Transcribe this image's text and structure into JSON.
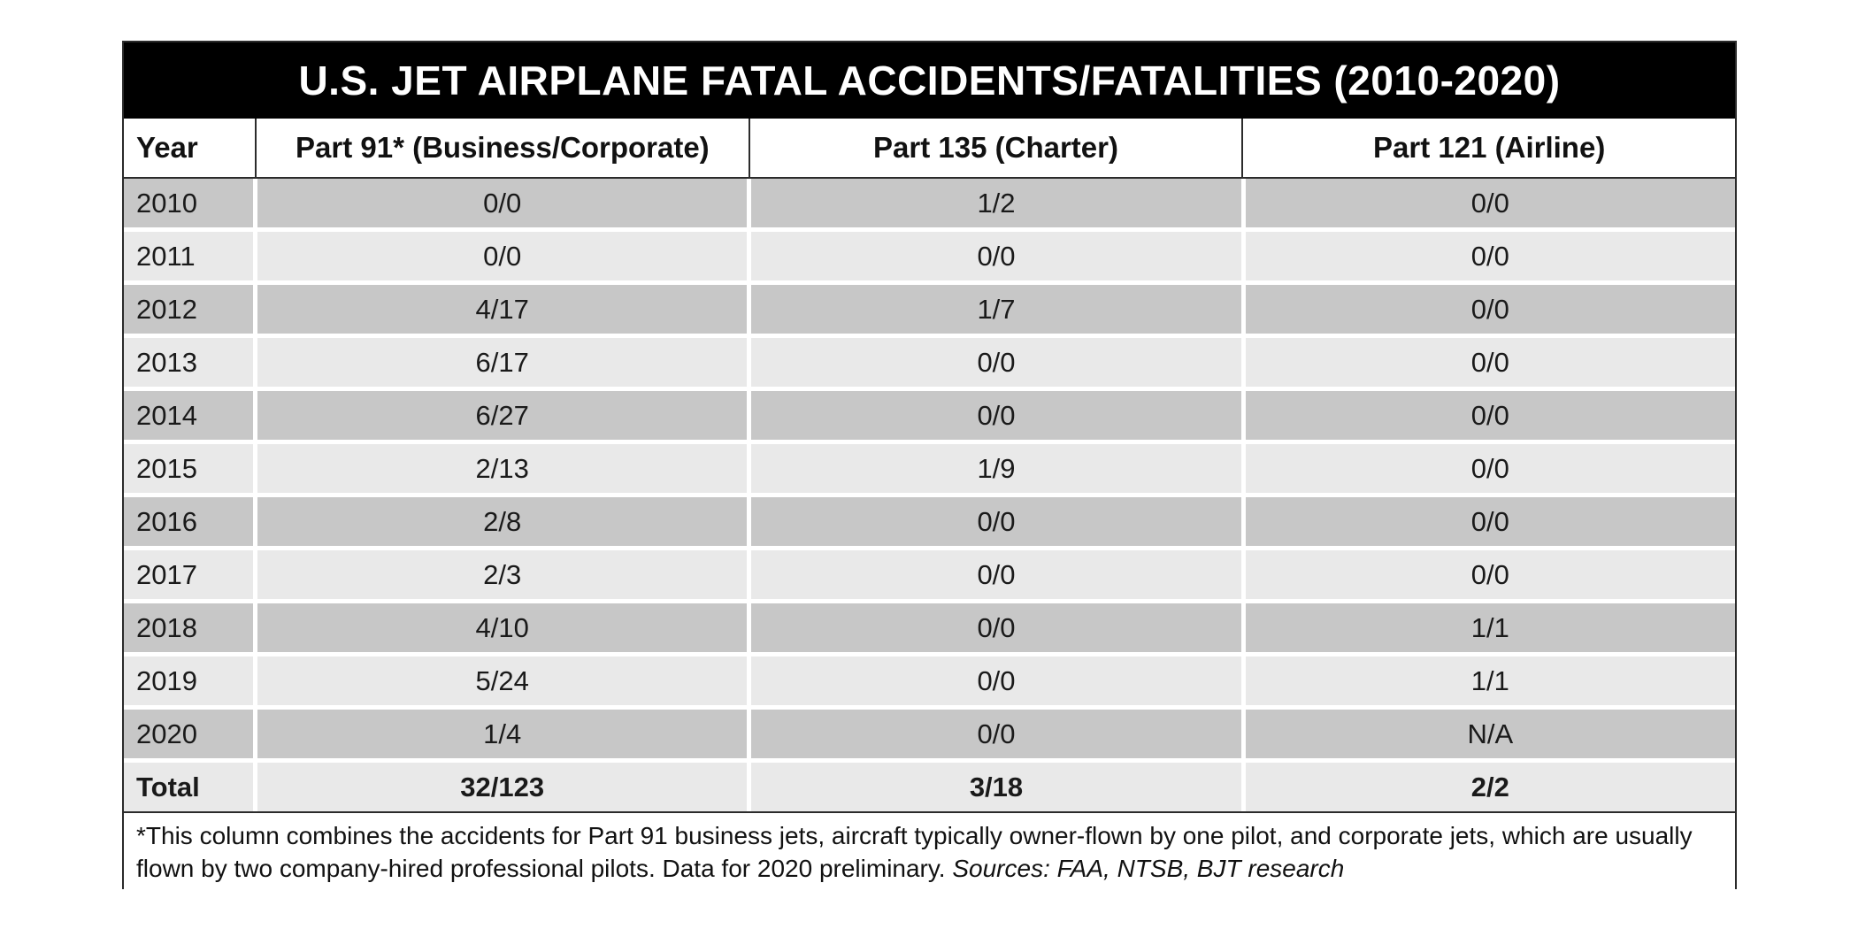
{
  "chart_data": {
    "type": "table",
    "title": "U.S. JET AIRPLANE FATAL ACCIDENTS/FATALITIES (2010-2020)",
    "columns": [
      "Year",
      "Part 91* (Business/Corporate)",
      "Part 135 (Charter)",
      "Part 121 (Airline)"
    ],
    "rows": [
      [
        "2010",
        "0/0",
        "1/2",
        "0/0"
      ],
      [
        "2011",
        "0/0",
        "0/0",
        "0/0"
      ],
      [
        "2012",
        "4/17",
        "1/7",
        "0/0"
      ],
      [
        "2013",
        "6/17",
        "0/0",
        "0/0"
      ],
      [
        "2014",
        "6/27",
        "0/0",
        "0/0"
      ],
      [
        "2015",
        "2/13",
        "1/9",
        "0/0"
      ],
      [
        "2016",
        "2/8",
        "0/0",
        "0/0"
      ],
      [
        "2017",
        "2/3",
        "0/0",
        "0/0"
      ],
      [
        "2018",
        "4/10",
        "0/0",
        "1/1"
      ],
      [
        "2019",
        "5/24",
        "0/0",
        "1/1"
      ],
      [
        "2020",
        "1/4",
        "0/0",
        "N/A"
      ]
    ],
    "total_row": [
      "Total",
      "32/123",
      "3/18",
      "2/2"
    ],
    "layout_hints": {
      "row_striping": "alternating dark/light gray starting dark at 2010",
      "total_row_style": "bold"
    }
  },
  "footnote": {
    "text": "*This column combines the accidents for Part 91 business jets, aircraft typically owner-flown by one pilot, and corporate jets, which are usually flown by two company-hired professional pilots. Data for 2020 preliminary. ",
    "sources": "Sources: FAA, NTSB, BJT research"
  },
  "colors": {
    "banner_bg": "#000000",
    "banner_text": "#ffffff",
    "row_dark": "#c7c7c7",
    "row_light": "#e9e9e9",
    "border": "#2b2b2b",
    "body_text": "#1a1a1a"
  }
}
